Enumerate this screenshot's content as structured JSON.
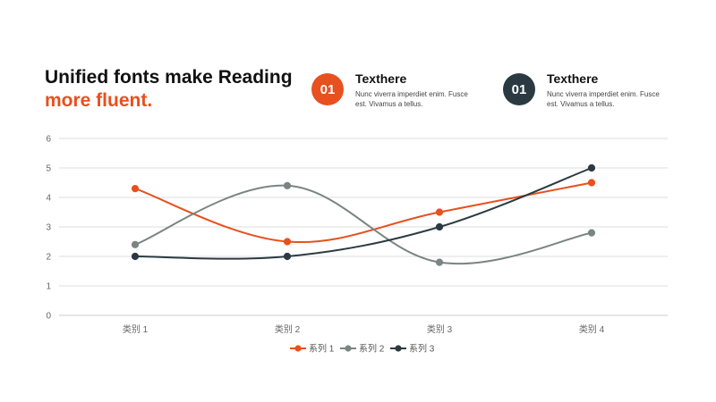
{
  "header": {
    "title_line1": "Unified fonts make Reading",
    "title_line2": "more fluent."
  },
  "cards": [
    {
      "badge": "01",
      "title": "Texthere",
      "text": "Nunc viverra imperdiet enim. Fusce est. Vivamus a tellus.",
      "color": "#e8501f"
    },
    {
      "badge": "01",
      "title": "Texthere",
      "text": "Nunc viverra imperdiet enim. Fusce est. Vivamus a tellus.",
      "color": "#2b3a42"
    }
  ],
  "colors": {
    "accent": "#e8501f",
    "dark": "#2b3a42",
    "gray": "#7a8583",
    "grid": "#dddddd"
  },
  "chart_data": {
    "type": "line",
    "smooth": true,
    "categories": [
      "类别 1",
      "类别 2",
      "类别 3",
      "类别 4"
    ],
    "ylim": [
      0,
      6
    ],
    "yticks": [
      0,
      1,
      2,
      3,
      4,
      5,
      6
    ],
    "grid": true,
    "legend": "bottom",
    "series": [
      {
        "name": "系列 1",
        "values": [
          4.3,
          2.5,
          3.5,
          4.5
        ],
        "color": "#e8501f"
      },
      {
        "name": "系列 2",
        "values": [
          2.4,
          4.4,
          1.8,
          2.8
        ],
        "color": "#7a8583"
      },
      {
        "name": "系列 3",
        "values": [
          2.0,
          2.0,
          3.0,
          5.0
        ],
        "color": "#2b3a42"
      }
    ]
  }
}
